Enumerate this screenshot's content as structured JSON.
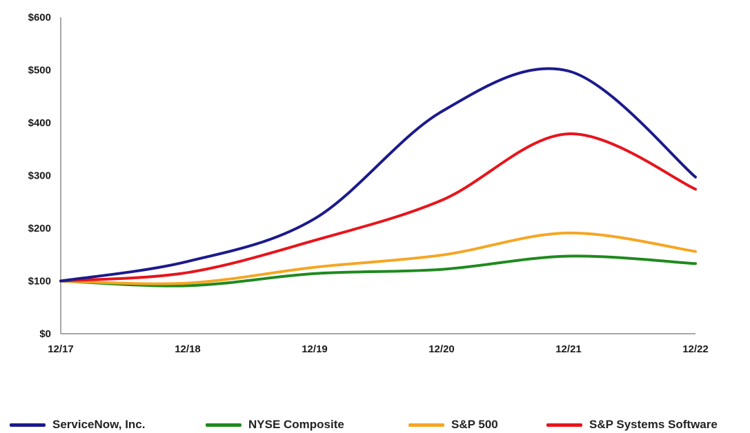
{
  "chart_data": {
    "type": "line",
    "title": "",
    "xlabel": "",
    "ylabel": "",
    "categories": [
      "12/17",
      "12/18",
      "12/19",
      "12/20",
      "12/21",
      "12/22"
    ],
    "y_ticks": [
      "$0",
      "$100",
      "$200",
      "$300",
      "$400",
      "$500",
      "$600"
    ],
    "ylim": [
      0,
      600
    ],
    "grid": false,
    "legend_position": "bottom",
    "series": [
      {
        "name": "ServiceNow, Inc.",
        "color": "#1b1a8c",
        "values": [
          100,
          137,
          218,
          421,
          498,
          297
        ]
      },
      {
        "name": "NYSE Composite",
        "color": "#1e8a1e",
        "values": [
          100,
          91,
          114,
          122,
          147,
          133
        ]
      },
      {
        "name": "S&P 500",
        "color": "#f5a623",
        "values": [
          100,
          96,
          126,
          149,
          191,
          156
        ]
      },
      {
        "name": "S&P Systems Software",
        "color": "#e8141c",
        "values": [
          100,
          116,
          177,
          253,
          379,
          274
        ]
      }
    ]
  }
}
